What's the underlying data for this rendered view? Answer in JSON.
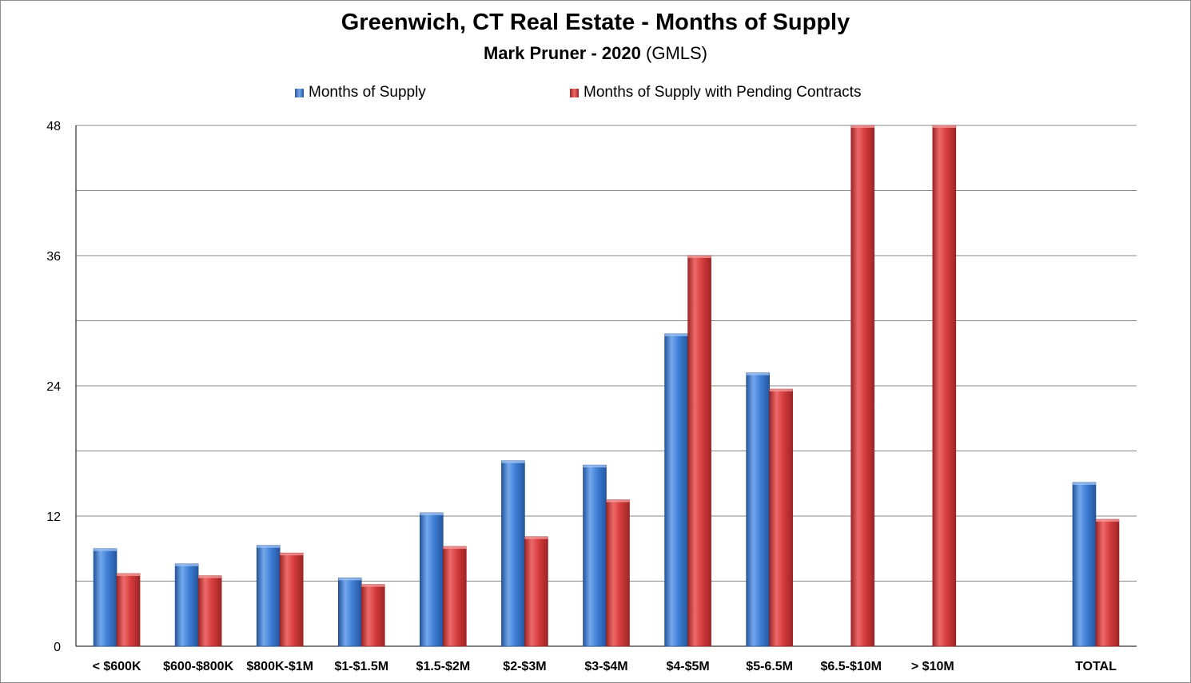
{
  "chart_data": {
    "type": "bar",
    "title": "Greenwich, CT Real Estate - Months of Supply",
    "subtitle": {
      "author": "Mark Pruner - ",
      "year": "2020",
      "source": "(GMLS)"
    },
    "categories": [
      "< $600K",
      "$600-$800K",
      "$800K-$1M",
      "$1-$1.5M",
      "$1.5-$2M",
      "$2-$3M",
      "$3-$4M",
      "$4-$5M",
      "$5-6.5M",
      "$6.5-$10M",
      "> $10M",
      "",
      "TOTAL"
    ],
    "series": [
      {
        "name": "Months of Supply",
        "color": "#3f7fd6",
        "values": [
          9.0,
          7.6,
          9.3,
          6.3,
          12.3,
          17.1,
          16.7,
          28.8,
          25.2,
          null,
          null,
          null,
          15.1
        ]
      },
      {
        "name": "Months of Supply with Pending Contracts",
        "color": "#d63c3c",
        "values": [
          6.7,
          6.5,
          8.6,
          5.7,
          9.2,
          10.1,
          13.5,
          36.0,
          23.7,
          48,
          48,
          null,
          11.7
        ]
      }
    ],
    "yticks": [
      "0",
      "12",
      "24",
      "36",
      "48"
    ],
    "ylim": [
      0,
      48
    ],
    "xlabel": "",
    "ylabel": "",
    "grid": true,
    "legend": "top-center"
  }
}
